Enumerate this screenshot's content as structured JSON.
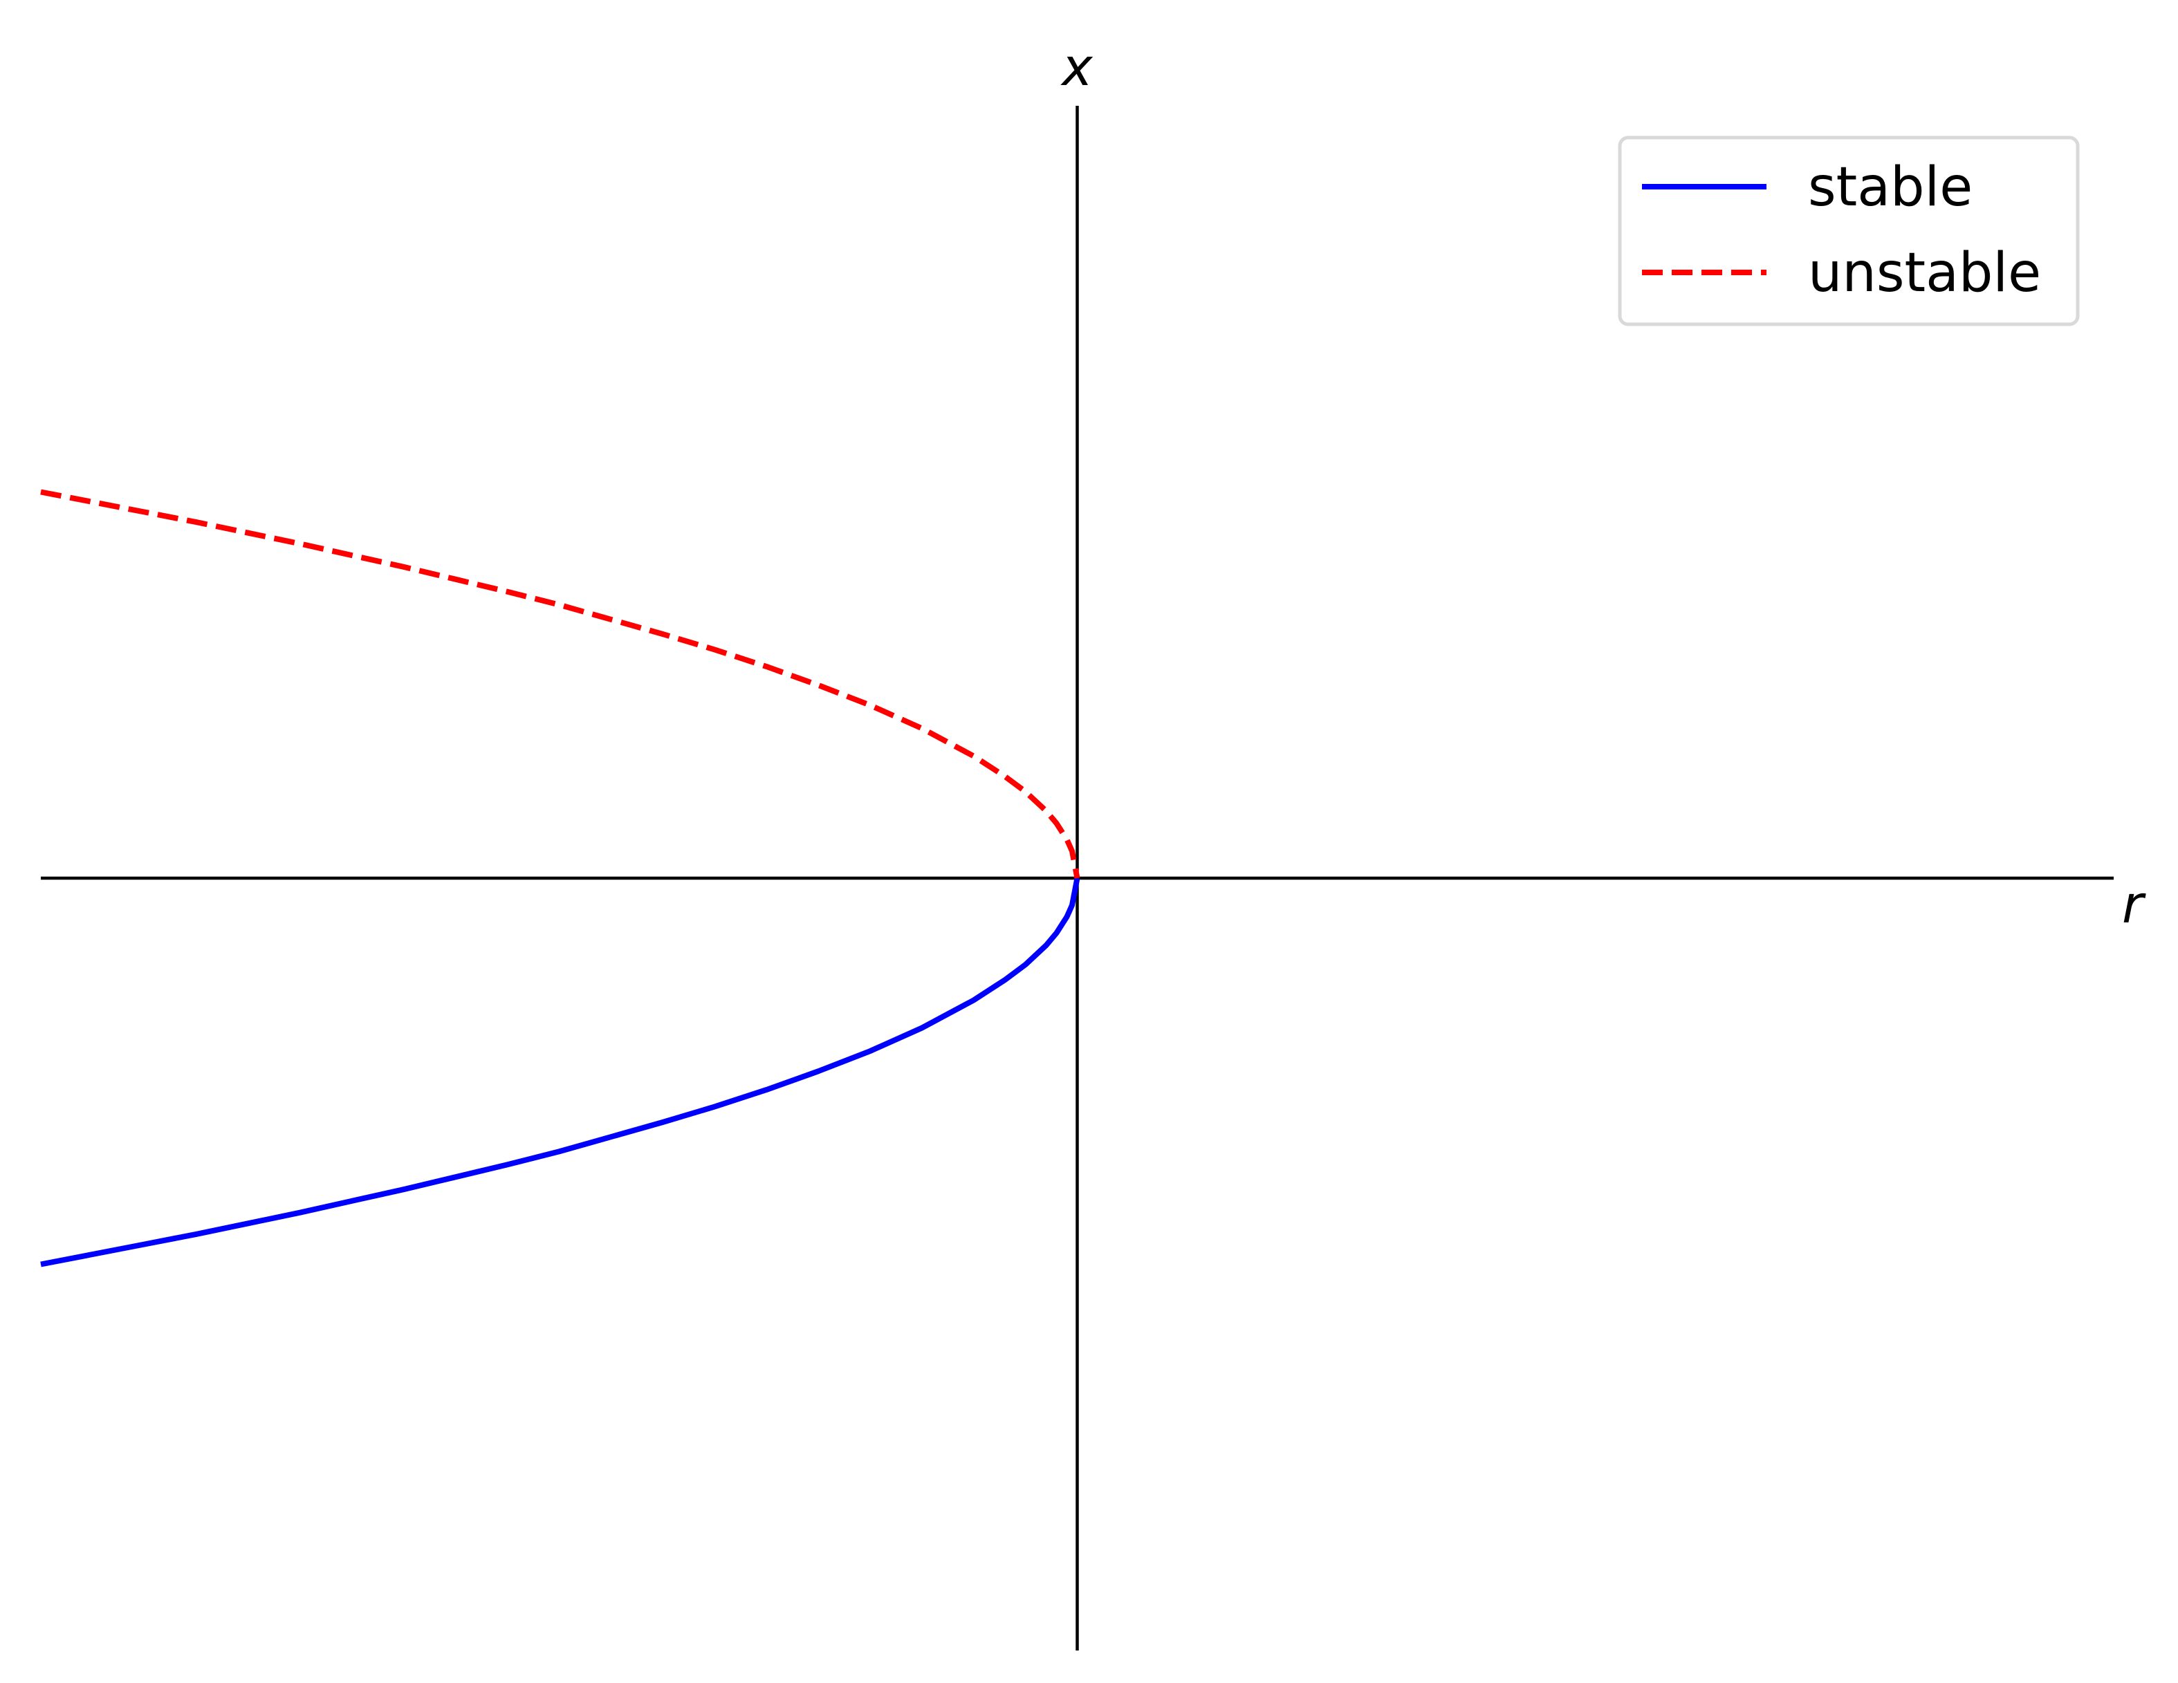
{
  "chart_data": {
    "type": "line",
    "xlabel": "r",
    "ylabel": "x",
    "xlim": [
      -1.0,
      1.0
    ],
    "ylim": [
      -1.0,
      1.0
    ],
    "grid": false,
    "legend_position": "top-right",
    "spines": "centered at origin",
    "series": [
      {
        "name": "stable",
        "color": "#0000ff",
        "line_style": "solid",
        "x": [
          -1.0,
          -0.95,
          -0.9,
          -0.85,
          -0.8,
          -0.75,
          -0.7,
          -0.65,
          -0.6,
          -0.55,
          -0.5,
          -0.45,
          -0.4,
          -0.35,
          -0.3,
          -0.25,
          -0.2,
          -0.15,
          -0.1,
          -0.07,
          -0.05,
          -0.03,
          -0.02,
          -0.01,
          -0.005,
          0.0
        ],
        "y": [
          -0.5,
          -0.487,
          -0.474,
          -0.461,
          -0.447,
          -0.433,
          -0.418,
          -0.403,
          -0.387,
          -0.371,
          -0.354,
          -0.335,
          -0.316,
          -0.296,
          -0.274,
          -0.25,
          -0.224,
          -0.194,
          -0.158,
          -0.132,
          -0.112,
          -0.087,
          -0.071,
          -0.05,
          -0.035,
          0.0
        ]
      },
      {
        "name": "unstable",
        "color": "#ff0000",
        "line_style": "dashed",
        "x": [
          -1.0,
          -0.95,
          -0.9,
          -0.85,
          -0.8,
          -0.75,
          -0.7,
          -0.65,
          -0.6,
          -0.55,
          -0.5,
          -0.45,
          -0.4,
          -0.35,
          -0.3,
          -0.25,
          -0.2,
          -0.15,
          -0.1,
          -0.07,
          -0.05,
          -0.03,
          -0.02,
          -0.01,
          -0.005,
          0.0
        ],
        "y": [
          0.5,
          0.487,
          0.474,
          0.461,
          0.447,
          0.433,
          0.418,
          0.403,
          0.387,
          0.371,
          0.354,
          0.335,
          0.316,
          0.296,
          0.274,
          0.25,
          0.224,
          0.194,
          0.158,
          0.132,
          0.112,
          0.087,
          0.071,
          0.05,
          0.035,
          0.0
        ]
      }
    ]
  }
}
